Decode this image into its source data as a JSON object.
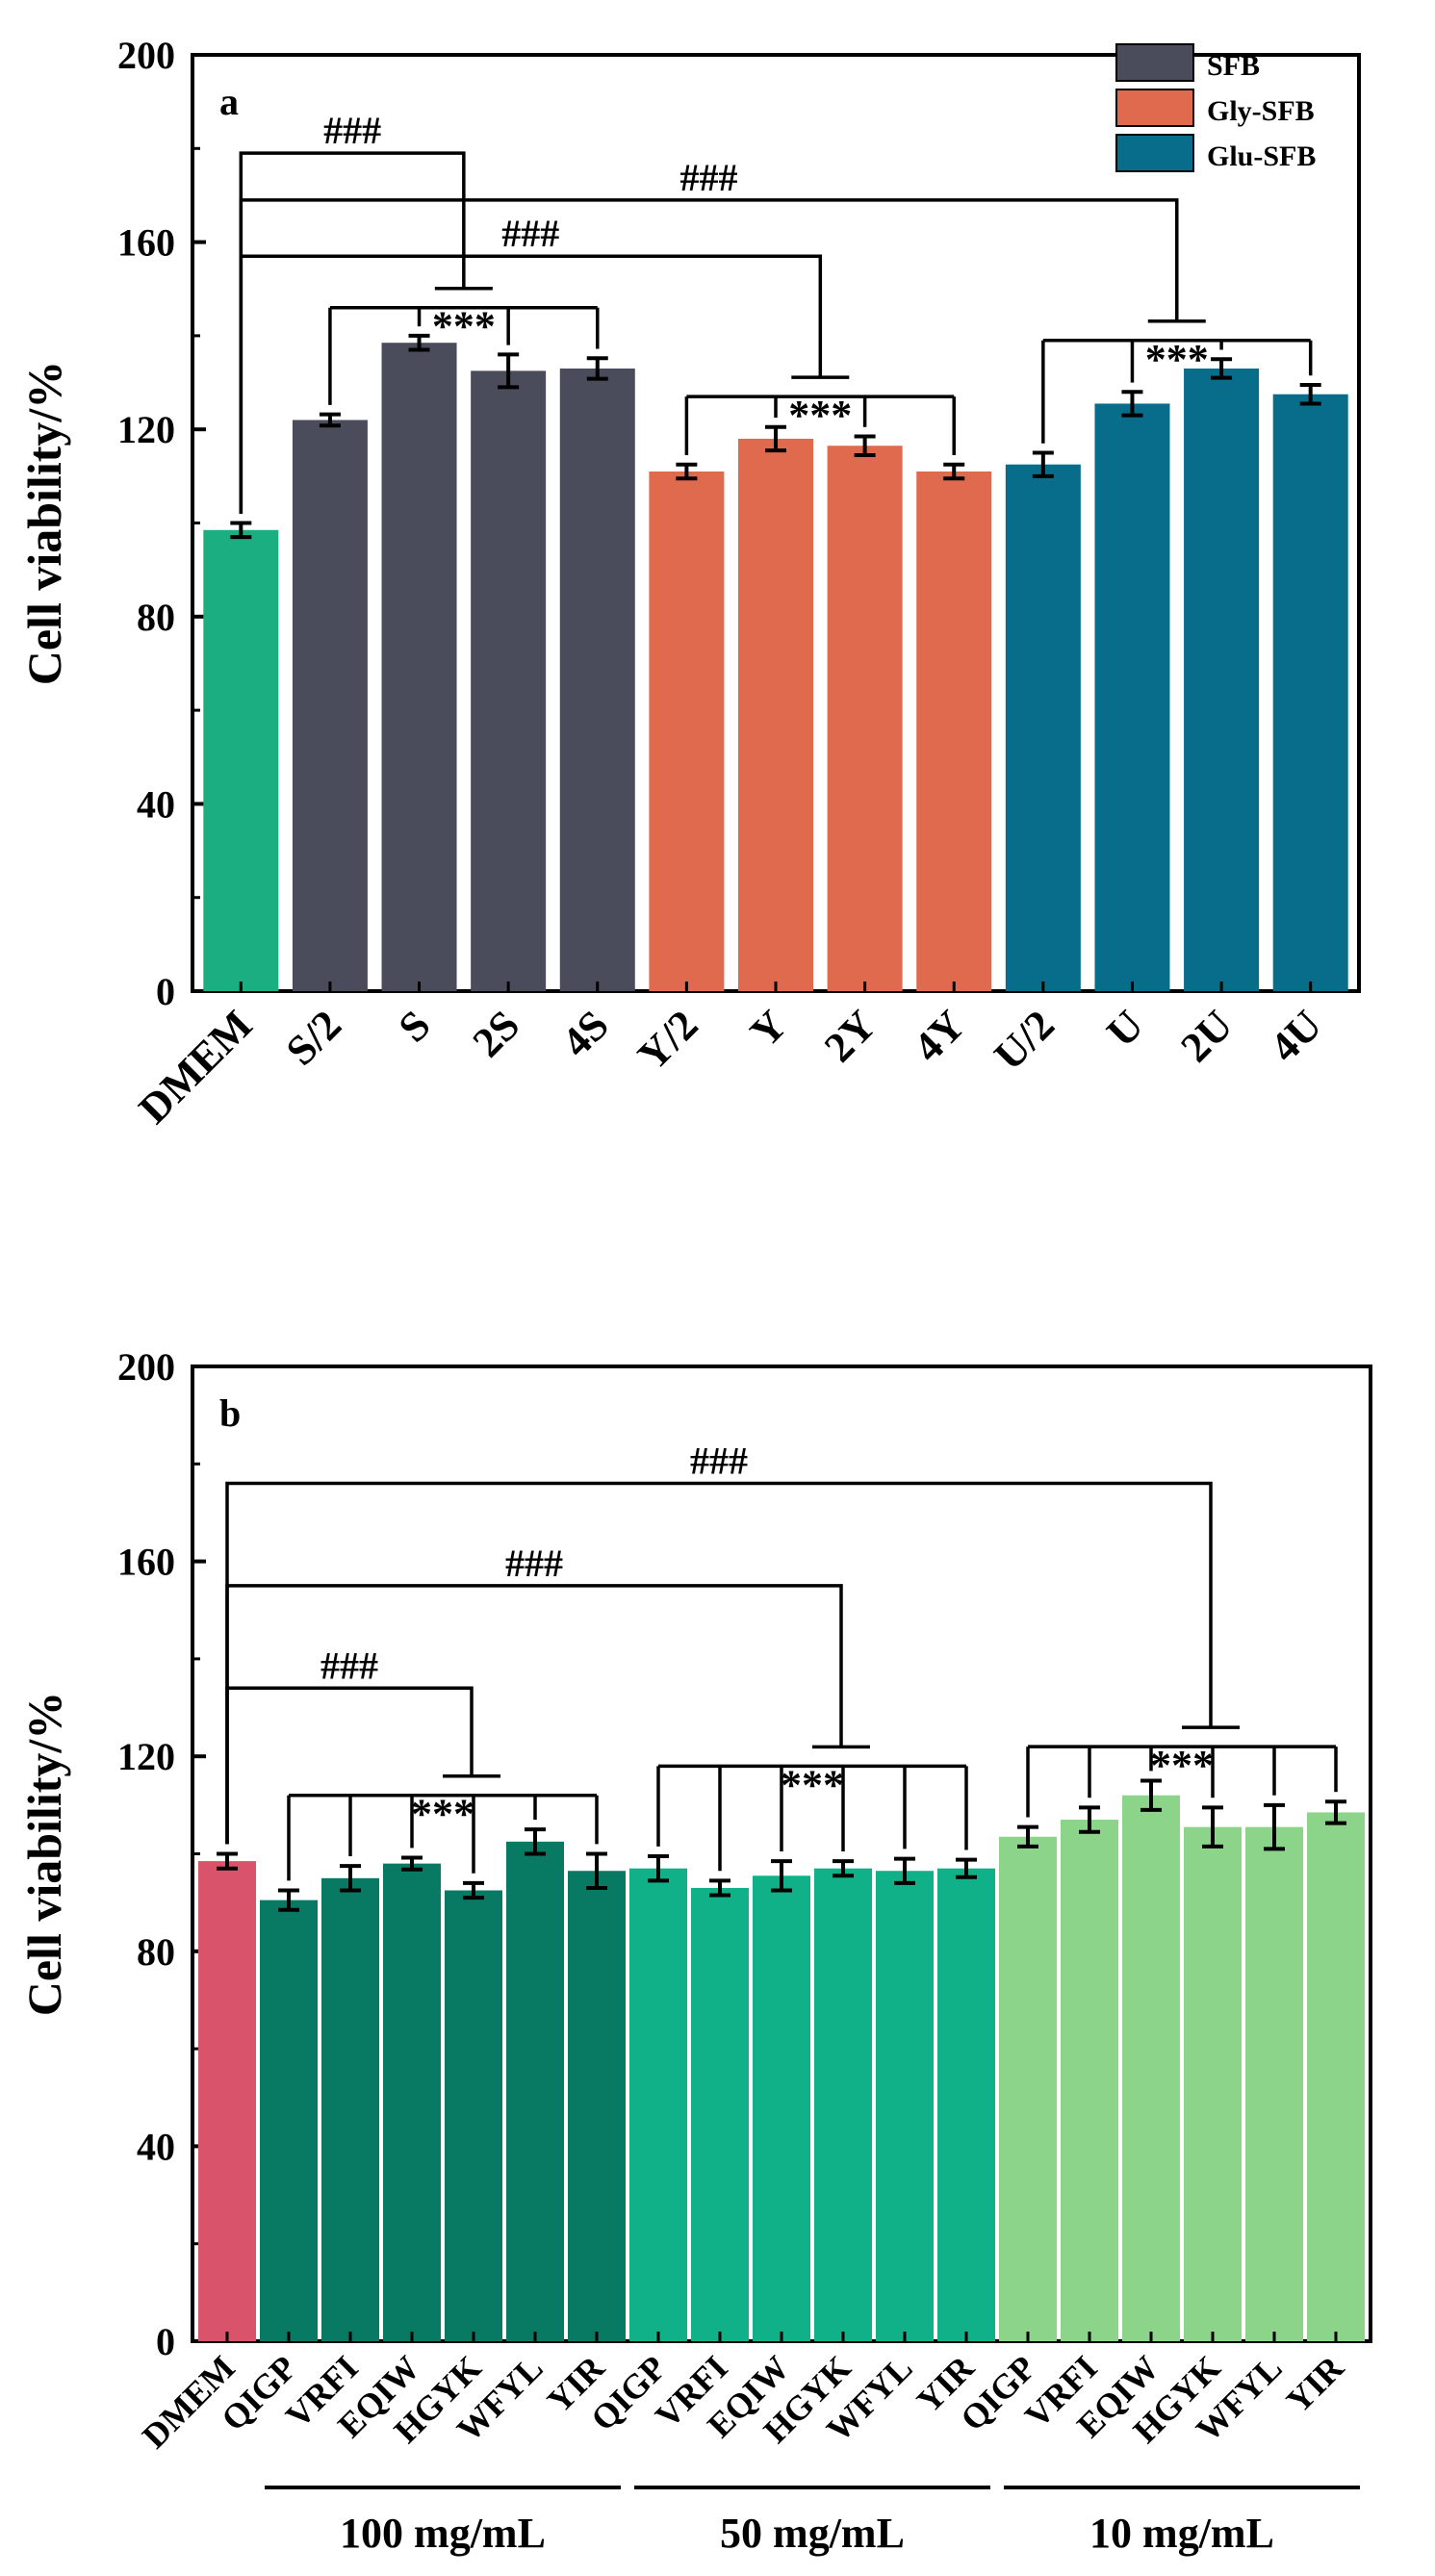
{
  "chart_data": [
    {
      "type": "bar",
      "panel_label": "a",
      "ylabel": "Cell viability/%",
      "xlabel": "",
      "ylim": [
        0,
        200
      ],
      "yticks": [
        "0",
        "40",
        "80",
        "120",
        "160",
        "200"
      ],
      "categories": [
        "DMEM",
        "S/2",
        "S",
        "2S",
        "4S",
        "Y/2",
        "Y",
        "2Y",
        "4Y",
        "U/2",
        "U",
        "2U",
        "4U"
      ],
      "values": [
        98.5,
        122,
        138.5,
        132.5,
        133,
        111,
        118,
        116.5,
        111,
        112.5,
        125.5,
        133,
        127.5
      ],
      "errors": [
        1.5,
        1.2,
        1.5,
        3.5,
        2.2,
        1.5,
        2.5,
        2,
        1.5,
        2.5,
        2.5,
        2,
        2
      ],
      "bar_colors": [
        "#1aae80",
        "#4a4c5c",
        "#4a4c5c",
        "#4a4c5c",
        "#4a4c5c",
        "#e06a4e",
        "#e06a4e",
        "#e06a4e",
        "#e06a4e",
        "#086d8a",
        "#086d8a",
        "#086d8a",
        "#086d8a"
      ],
      "legend": [
        {
          "label": "SFB",
          "color": "#4a4c5c"
        },
        {
          "label": "Gly-SFB",
          "color": "#e06a4e"
        },
        {
          "label": "Glu-SFB",
          "color": "#086d8a"
        }
      ],
      "annotations": [
        {
          "text": "###",
          "group": [
            1,
            4
          ],
          "line_y": 179
        },
        {
          "text": "###",
          "group": [
            9,
            12
          ],
          "line_y": 169
        },
        {
          "text": "###",
          "group": [
            5,
            8
          ],
          "line_y": 157
        },
        {
          "text": "***",
          "group": [
            1,
            4
          ],
          "line_y": 146
        },
        {
          "text": "***",
          "group": [
            5,
            8
          ],
          "line_y": 127
        },
        {
          "text": "***",
          "group": [
            9,
            12
          ],
          "line_y": 139
        }
      ]
    },
    {
      "type": "bar",
      "panel_label": "b",
      "ylabel": "Cell viability/%",
      "xlabel": "",
      "ylim": [
        0,
        200
      ],
      "yticks": [
        "0",
        "40",
        "80",
        "120",
        "160",
        "200"
      ],
      "categories": [
        "DMEM",
        "QIGP",
        "VRFI",
        "EQIW",
        "HGYK",
        "WFYL",
        "YIR",
        "QIGP",
        "VRFI",
        "EQIW",
        "HGYK",
        "WFYL",
        "YIR",
        "QIGP",
        "VRFI",
        "EQIW",
        "HGYK",
        "WFYL",
        "YIR"
      ],
      "values": [
        98.5,
        90.5,
        95,
        98,
        92.5,
        102.5,
        96.5,
        97,
        93,
        95.5,
        97,
        96.5,
        97,
        103.5,
        107,
        112,
        105.5,
        105.5,
        108.5
      ],
      "errors": [
        1.5,
        2,
        2.5,
        1.2,
        1.5,
        2.5,
        3.5,
        2.5,
        1.5,
        3,
        1.5,
        2.5,
        1.8,
        2,
        2.5,
        3,
        4,
        4.5,
        2.2
      ],
      "bar_colors": [
        "#d9546a",
        "#087a63",
        "#087a63",
        "#087a63",
        "#087a63",
        "#087a63",
        "#087a63",
        "#10b088",
        "#10b088",
        "#10b088",
        "#10b088",
        "#10b088",
        "#10b088",
        "#8cd48a",
        "#8cd48a",
        "#8cd48a",
        "#8cd48a",
        "#8cd48a",
        "#8cd48a"
      ],
      "group_labels": [
        {
          "label": "100 mg/mL",
          "group": [
            1,
            6
          ]
        },
        {
          "label": "50 mg/mL",
          "group": [
            7,
            12
          ]
        },
        {
          "label": "10 mg/mL",
          "group": [
            13,
            18
          ]
        }
      ],
      "annotations": [
        {
          "text": "###",
          "group": [
            13,
            18
          ],
          "line_y": 176
        },
        {
          "text": "###",
          "group": [
            7,
            12
          ],
          "line_y": 155
        },
        {
          "text": "###",
          "group": [
            1,
            6
          ],
          "line_y": 134
        },
        {
          "text": "***",
          "group": [
            1,
            6
          ],
          "line_y": 112
        },
        {
          "text": "***",
          "group": [
            7,
            12
          ],
          "line_y": 118
        },
        {
          "text": "***",
          "group": [
            13,
            18
          ],
          "line_y": 122
        }
      ]
    }
  ]
}
